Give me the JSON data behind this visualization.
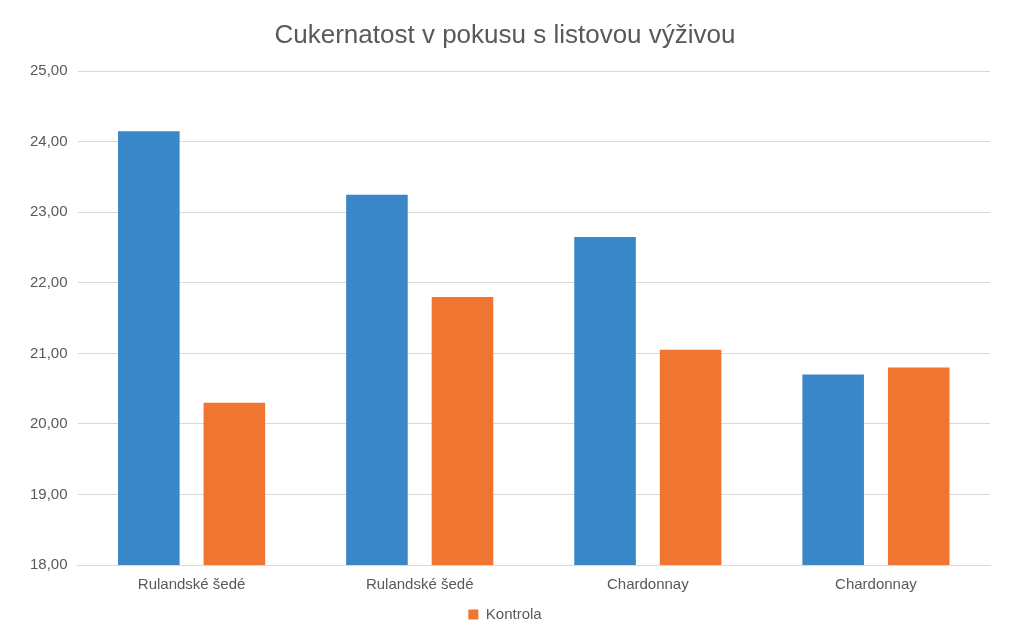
{
  "chart_data": {
    "type": "bar",
    "title": "Cukernatost v pokusu s listovou výživou",
    "categories": [
      "Rulandské šedé",
      "Rulandské šedé",
      "Chardonnay",
      "Chardonnay"
    ],
    "series": [
      {
        "color": "#3a87c8",
        "values": [
          24.15,
          23.25,
          22.65,
          20.7
        ]
      },
      {
        "name": "Kontrola",
        "color": "#ef7530",
        "values": [
          20.3,
          21.8,
          21.05,
          20.8
        ]
      }
    ],
    "ylim": [
      18,
      25
    ],
    "yticks": [
      {
        "value": 18,
        "label": "18,00"
      },
      {
        "value": 19,
        "label": "19,00"
      },
      {
        "value": 20,
        "label": "20,00"
      },
      {
        "value": 21,
        "label": "21,00"
      },
      {
        "value": 22,
        "label": "22,00"
      },
      {
        "value": 23,
        "label": "23,00"
      },
      {
        "value": 24,
        "label": "24,00"
      },
      {
        "value": 25,
        "label": "25,00"
      }
    ],
    "grid": "y",
    "legend": "bottom"
  }
}
